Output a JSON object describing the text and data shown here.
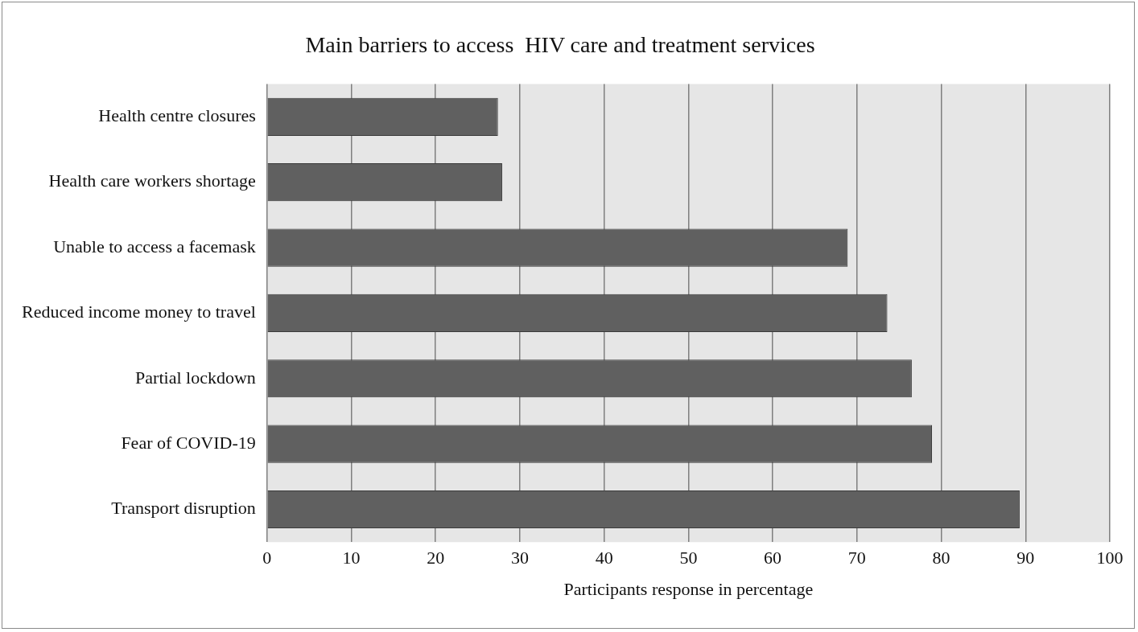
{
  "chart_data": {
    "type": "bar",
    "orientation": "horizontal",
    "title": "Main barriers to access  HIV care and treatment services",
    "xlabel": "Participants response in percentage",
    "categories": [
      "Health centre closures",
      "Health care workers shortage",
      "Unable to access a facemask",
      "Reduced income money to travel",
      "Partial lockdown",
      "Fear of COVID-19",
      "Transport disruption"
    ],
    "values": [
      27.4,
      27.9,
      68.9,
      73.6,
      76.5,
      78.9,
      89.3
    ],
    "color": "#606060",
    "xlim": [
      0,
      100
    ],
    "xticks": [
      0,
      10,
      20,
      30,
      40,
      50,
      60,
      70,
      80,
      90,
      100
    ],
    "grid": "x",
    "legend": false
  }
}
